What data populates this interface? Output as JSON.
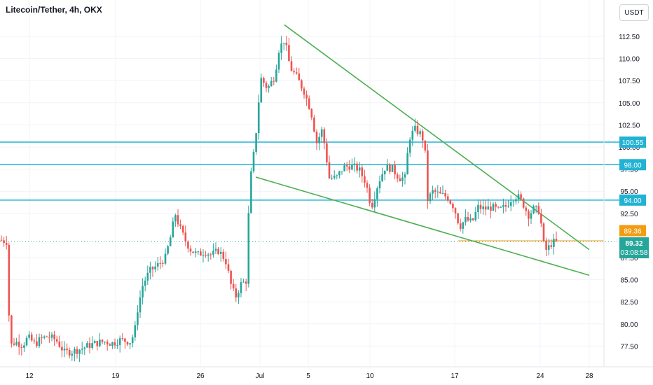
{
  "header": {
    "title": "Litecoin/Tether, 4h, OKX",
    "currency": "USDT"
  },
  "colors": {
    "up": "#26a69a",
    "down": "#ef5350",
    "level_line": "#22b3d4",
    "trend_line": "#4caf50",
    "last_price_bg": "#26a69a",
    "prev_price_bg": "#f39c12"
  },
  "chart_data": {
    "type": "candlestick",
    "y_axis": {
      "ticks": [
        "77.50",
        "80.00",
        "82.50",
        "85.00",
        "87.50",
        "92.50",
        "95.00",
        "97.50",
        "100.00",
        "102.50",
        "105.00",
        "107.50",
        "110.00",
        "112.50"
      ],
      "ylim": [
        76.0,
        115.0
      ]
    },
    "x_axis": {
      "ticks": [
        "12",
        "19",
        "26",
        "Jul",
        "5",
        "10",
        "17",
        "24",
        "28"
      ]
    },
    "horizontal_levels": [
      {
        "label": "100.55",
        "value": 100.55
      },
      {
        "label": "98.00",
        "value": 98.0
      },
      {
        "label": "94.00",
        "value": 94.0
      }
    ],
    "price_labels": {
      "prev_close": "89.36",
      "last_price": "89.32",
      "countdown": "03:08:58"
    },
    "trend_lines": [
      {
        "name": "upper",
        "from": {
          "date": "Jul 3",
          "value": 113.8
        },
        "to": {
          "date": "Jul 28",
          "value": 88.4
        }
      },
      {
        "name": "lower",
        "from": {
          "date": "Jun 30",
          "value": 96.6
        },
        "to": {
          "date": "Jul 28",
          "value": 85.5
        }
      }
    ],
    "series": [
      {
        "anchors": [
          [
            0,
            89.5
          ],
          [
            10,
            89.3
          ],
          [
            14,
            77.5
          ],
          [
            22,
            78.0
          ],
          [
            32,
            77.6
          ],
          [
            40,
            78.5
          ],
          [
            50,
            77.7
          ],
          [
            58,
            78.3
          ],
          [
            68,
            78.6
          ],
          [
            80,
            78.2
          ],
          [
            92,
            76.8
          ],
          [
            104,
            76.9
          ],
          [
            116,
            77.2
          ],
          [
            128,
            77.6
          ],
          [
            140,
            77.9
          ],
          [
            150,
            78.0
          ],
          [
            160,
            77.8
          ],
          [
            172,
            78.2
          ],
          [
            186,
            78.0
          ],
          [
            192,
            79.0
          ],
          [
            196,
            81.5
          ],
          [
            204,
            84.5
          ],
          [
            214,
            86.0
          ],
          [
            226,
            86.7
          ],
          [
            236,
            87.5
          ],
          [
            244,
            90.0
          ],
          [
            250,
            92.5
          ],
          [
            256,
            91.0
          ],
          [
            264,
            89.5
          ],
          [
            272,
            88.4
          ],
          [
            282,
            87.8
          ],
          [
            292,
            88.2
          ],
          [
            302,
            87.8
          ],
          [
            312,
            88.3
          ],
          [
            322,
            87.2
          ],
          [
            330,
            84.3
          ],
          [
            336,
            83.0
          ],
          [
            344,
            84.5
          ],
          [
            352,
            84.9
          ],
          [
            356,
            95.5
          ],
          [
            364,
            100.3
          ],
          [
            372,
            107.8
          ],
          [
            382,
            106.6
          ],
          [
            392,
            108.0
          ],
          [
            398,
            111.0
          ],
          [
            406,
            112.2
          ],
          [
            414,
            109.0
          ],
          [
            424,
            107.8
          ],
          [
            434,
            106.3
          ],
          [
            444,
            104.0
          ],
          [
            452,
            100.5
          ],
          [
            460,
            102.0
          ],
          [
            470,
            96.5
          ],
          [
            480,
            96.5
          ],
          [
            490,
            97.7
          ],
          [
            500,
            97.9
          ],
          [
            512,
            97.5
          ],
          [
            522,
            96.0
          ],
          [
            530,
            93.2
          ],
          [
            540,
            96.0
          ],
          [
            550,
            97.8
          ],
          [
            560,
            97.5
          ],
          [
            570,
            96.5
          ],
          [
            578,
            96.5
          ],
          [
            584,
            101.0
          ],
          [
            592,
            102.0
          ],
          [
            600,
            101.5
          ],
          [
            606,
            100.5
          ],
          [
            610,
            94.0
          ],
          [
            618,
            95.0
          ],
          [
            628,
            94.6
          ],
          [
            638,
            94.4
          ],
          [
            648,
            93.2
          ],
          [
            656,
            91.0
          ],
          [
            664,
            91.8
          ],
          [
            674,
            91.5
          ],
          [
            682,
            93.2
          ],
          [
            692,
            93.0
          ],
          [
            702,
            93.2
          ],
          [
            712,
            92.8
          ],
          [
            722,
            93.3
          ],
          [
            730,
            94.2
          ],
          [
            738,
            94.5
          ],
          [
            746,
            93.7
          ],
          [
            754,
            92.3
          ],
          [
            762,
            93.0
          ],
          [
            770,
            92.8
          ],
          [
            776,
            89.0
          ],
          [
            780,
            88.3
          ],
          [
            788,
            89.2
          ],
          [
            796,
            89.3
          ]
        ]
      }
    ]
  }
}
